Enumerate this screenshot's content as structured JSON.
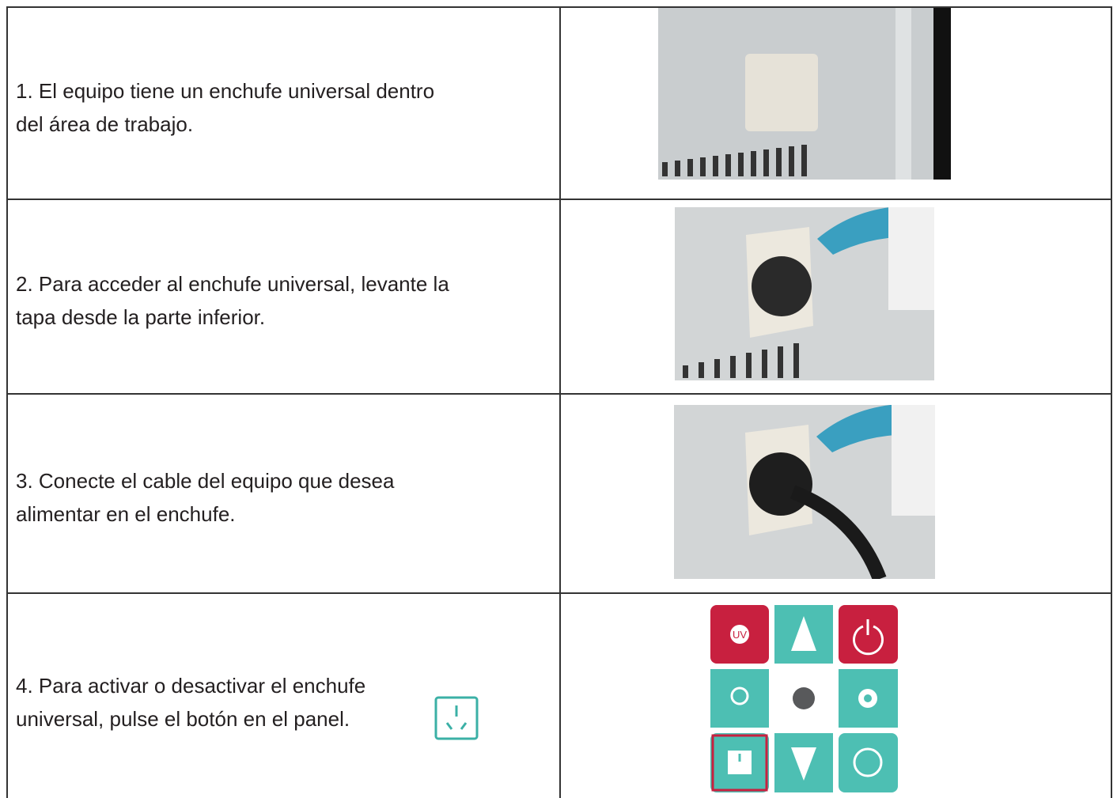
{
  "rows": [
    {
      "lines": [
        "1. El equipo tiene un enchufe universal dentro",
        "del área de trabajo."
      ]
    },
    {
      "lines": [
        "2. Para acceder al enchufe universal, levante la",
        "tapa desde la parte inferior."
      ]
    },
    {
      "lines": [
        "3. Conecte el cable del equipo que desea",
        "alimentar en el enchufe."
      ]
    },
    {
      "lines": [
        "4. Para activar o desactivar el enchufe",
        "universal, pulse el botón en el panel."
      ]
    }
  ],
  "panel": {
    "uv_label": "UV"
  }
}
